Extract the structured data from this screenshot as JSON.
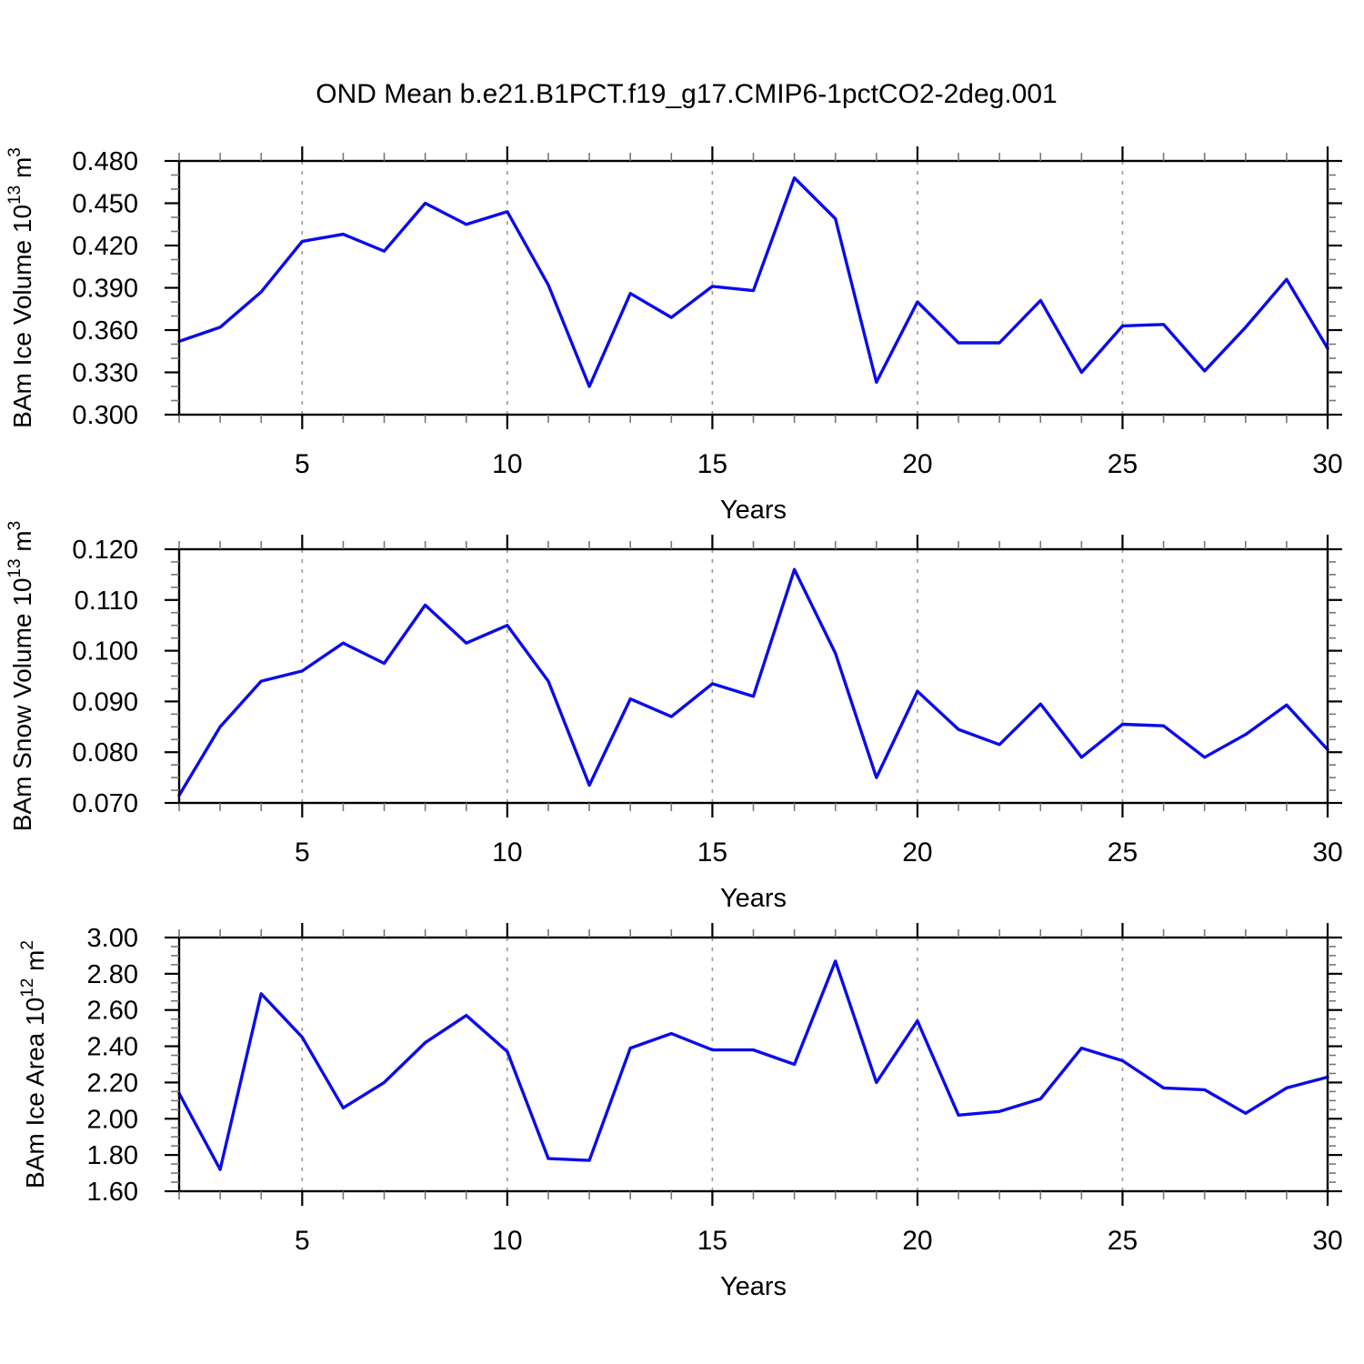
{
  "title": "OND Mean b.e21.B1PCT.f19_g17.CMIP6-1pctCO2-2deg.001",
  "style": {
    "line_color": "#0b0bEB",
    "axis_color": "#000000",
    "minor_tick_color": "#777777",
    "grid_color": "#999999",
    "background": "#ffffff"
  },
  "chart_data": [
    {
      "type": "line",
      "id": "ice-volume",
      "series_name": "BAm Ice Volume",
      "ylabel_parts": [
        {
          "t": "BAm Ice Volume 10"
        },
        {
          "t": "13",
          "sup": true
        },
        {
          "t": " m"
        },
        {
          "t": "3",
          "sup": true
        }
      ],
      "xlabel": "Years",
      "xlim": [
        2,
        30
      ],
      "ylim": [
        0.3,
        0.48
      ],
      "xticks_major": [
        5,
        10,
        15,
        20,
        25,
        30
      ],
      "xtick_labels": [
        "5",
        "10",
        "15",
        "20",
        "25",
        "30"
      ],
      "xticks_minor_step": 1,
      "gridlines_x": [
        5,
        10,
        15,
        20,
        25
      ],
      "yticks_major": [
        0.3,
        0.33,
        0.36,
        0.39,
        0.42,
        0.45,
        0.48
      ],
      "ytick_labels": [
        "0.300",
        "0.330",
        "0.360",
        "0.390",
        "0.420",
        "0.450",
        "0.480"
      ],
      "yticks_minor_step": 0.01,
      "grid": "x-dashed",
      "legend": "none",
      "x": [
        2,
        3,
        4,
        5,
        6,
        7,
        8,
        9,
        10,
        11,
        12,
        13,
        14,
        15,
        16,
        17,
        18,
        19,
        20,
        21,
        22,
        23,
        24,
        25,
        26,
        27,
        28,
        29,
        30
      ],
      "values": [
        0.352,
        0.362,
        0.387,
        0.423,
        0.428,
        0.416,
        0.45,
        0.435,
        0.444,
        0.392,
        0.32,
        0.386,
        0.369,
        0.391,
        0.388,
        0.468,
        0.439,
        0.323,
        0.38,
        0.351,
        0.351,
        0.381,
        0.33,
        0.363,
        0.364,
        0.331,
        0.362,
        0.396,
        0.347
      ]
    },
    {
      "type": "line",
      "id": "snow-volume",
      "series_name": "BAm Snow Volume",
      "ylabel_parts": [
        {
          "t": "BAm Snow Volume 10"
        },
        {
          "t": "13",
          "sup": true
        },
        {
          "t": " m"
        },
        {
          "t": "3",
          "sup": true
        }
      ],
      "xlabel": "Years",
      "xlim": [
        2,
        30
      ],
      "ylim": [
        0.07,
        0.12
      ],
      "xticks_major": [
        5,
        10,
        15,
        20,
        25,
        30
      ],
      "xtick_labels": [
        "5",
        "10",
        "15",
        "20",
        "25",
        "30"
      ],
      "xticks_minor_step": 1,
      "gridlines_x": [
        5,
        10,
        15,
        20,
        25
      ],
      "yticks_major": [
        0.07,
        0.08,
        0.09,
        0.1,
        0.11,
        0.12
      ],
      "ytick_labels": [
        "0.070",
        "0.080",
        "0.090",
        "0.100",
        "0.110",
        "0.120"
      ],
      "yticks_minor_step": 0.0025,
      "grid": "x-dashed",
      "legend": "none",
      "x": [
        2,
        3,
        4,
        5,
        6,
        7,
        8,
        9,
        10,
        11,
        12,
        13,
        14,
        15,
        16,
        17,
        18,
        19,
        20,
        21,
        22,
        23,
        24,
        25,
        26,
        27,
        28,
        29,
        30
      ],
      "values": [
        0.0715,
        0.085,
        0.094,
        0.096,
        0.1015,
        0.0975,
        0.109,
        0.1015,
        0.105,
        0.094,
        0.0735,
        0.0905,
        0.087,
        0.0935,
        0.091,
        0.116,
        0.0995,
        0.075,
        0.092,
        0.0845,
        0.0815,
        0.0895,
        0.079,
        0.0855,
        0.0852,
        0.079,
        0.0835,
        0.0893,
        0.0805
      ]
    },
    {
      "type": "line",
      "id": "ice-area",
      "series_name": "BAm Ice Area",
      "ylabel_parts": [
        {
          "t": "BAm Ice Area 10"
        },
        {
          "t": "12",
          "sup": true
        },
        {
          "t": " m"
        },
        {
          "t": "2",
          "sup": true
        }
      ],
      "xlabel": "Years",
      "xlim": [
        2,
        30
      ],
      "ylim": [
        1.6,
        3.0
      ],
      "xticks_major": [
        5,
        10,
        15,
        20,
        25,
        30
      ],
      "xtick_labels": [
        "5",
        "10",
        "15",
        "20",
        "25",
        "30"
      ],
      "xticks_minor_step": 1,
      "gridlines_x": [
        5,
        10,
        15,
        20,
        25
      ],
      "yticks_major": [
        1.6,
        1.8,
        2.0,
        2.2,
        2.4,
        2.6,
        2.8,
        3.0
      ],
      "ytick_labels": [
        "1.60",
        "1.80",
        "2.00",
        "2.20",
        "2.40",
        "2.60",
        "2.80",
        "3.00"
      ],
      "yticks_minor_step": 0.05,
      "grid": "x-dashed",
      "legend": "none",
      "x": [
        2,
        3,
        4,
        5,
        6,
        7,
        8,
        9,
        10,
        11,
        12,
        13,
        14,
        15,
        16,
        17,
        18,
        19,
        20,
        21,
        22,
        23,
        24,
        25,
        26,
        27,
        28,
        29,
        30
      ],
      "values": [
        2.14,
        1.72,
        2.69,
        2.45,
        2.06,
        2.2,
        2.42,
        2.57,
        2.37,
        1.78,
        1.77,
        2.39,
        2.47,
        2.38,
        2.38,
        2.3,
        2.87,
        2.2,
        2.54,
        2.02,
        2.04,
        2.11,
        2.39,
        2.32,
        2.17,
        2.16,
        2.03,
        2.17,
        2.23
      ]
    }
  ]
}
